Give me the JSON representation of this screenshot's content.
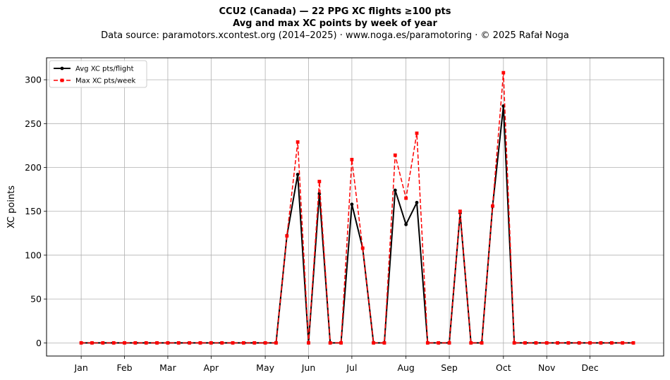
{
  "chart_data": {
    "type": "line",
    "title_line1": "CCU2 (Canada)  —  22 PPG XC flights ≥100 pts",
    "title_line2": "Avg and max XC points by week of year",
    "subtitle": "Data source: paramotors.xcontest.org (2014–2025)  ·  www.noga.es/paramotoring  ·  © 2025 Rafał Noga",
    "xlabel": "",
    "ylabel": "XC points",
    "x_range": [
      -2.2,
      54.8
    ],
    "ylim": [
      -15,
      325
    ],
    "y_ticks": [
      0,
      50,
      100,
      150,
      200,
      250,
      300
    ],
    "month_ticks": [
      {
        "label": "Jan",
        "week": 1
      },
      {
        "label": "Feb",
        "week": 5
      },
      {
        "label": "Mar",
        "week": 9
      },
      {
        "label": "Apr",
        "week": 13
      },
      {
        "label": "May",
        "week": 18
      },
      {
        "label": "Jun",
        "week": 22
      },
      {
        "label": "Jul",
        "week": 26
      },
      {
        "label": "Aug",
        "week": 31
      },
      {
        "label": "Sep",
        "week": 35
      },
      {
        "label": "Oct",
        "week": 40
      },
      {
        "label": "Nov",
        "week": 44
      },
      {
        "label": "Dec",
        "week": 48
      }
    ],
    "grid": true,
    "legend_position": "top-left",
    "weeks": [
      1,
      2,
      3,
      4,
      5,
      6,
      7,
      8,
      9,
      10,
      11,
      12,
      13,
      14,
      15,
      16,
      17,
      18,
      19,
      20,
      21,
      22,
      23,
      24,
      25,
      26,
      27,
      28,
      29,
      30,
      31,
      32,
      33,
      34,
      35,
      36,
      37,
      38,
      39,
      40,
      41,
      42,
      43,
      44,
      45,
      46,
      47,
      48,
      49,
      50,
      51,
      52
    ],
    "series": [
      {
        "name": "Avg XC pts/flight",
        "color": "#000000",
        "style": "solid-circle",
        "values": [
          0,
          0,
          0,
          0,
          0,
          0,
          0,
          0,
          0,
          0,
          0,
          0,
          0,
          0,
          0,
          0,
          0,
          0,
          0,
          122,
          192,
          0,
          170,
          0,
          0,
          158,
          108,
          0,
          0,
          174,
          135,
          160,
          0,
          0,
          0,
          148,
          0,
          0,
          156,
          270,
          0,
          0,
          0,
          0,
          0,
          0,
          0,
          0,
          0,
          0,
          0,
          0
        ]
      },
      {
        "name": "Max XC pts/week",
        "color": "#ff0000",
        "style": "dashed-square",
        "values": [
          0,
          0,
          0,
          0,
          0,
          0,
          0,
          0,
          0,
          0,
          0,
          0,
          0,
          0,
          0,
          0,
          0,
          0,
          0,
          122,
          229,
          0,
          184,
          0,
          0,
          209,
          108,
          0,
          0,
          214,
          165,
          239,
          0,
          0,
          0,
          150,
          0,
          0,
          156,
          308,
          0,
          0,
          0,
          0,
          0,
          0,
          0,
          0,
          0,
          0,
          0,
          0
        ]
      }
    ]
  }
}
